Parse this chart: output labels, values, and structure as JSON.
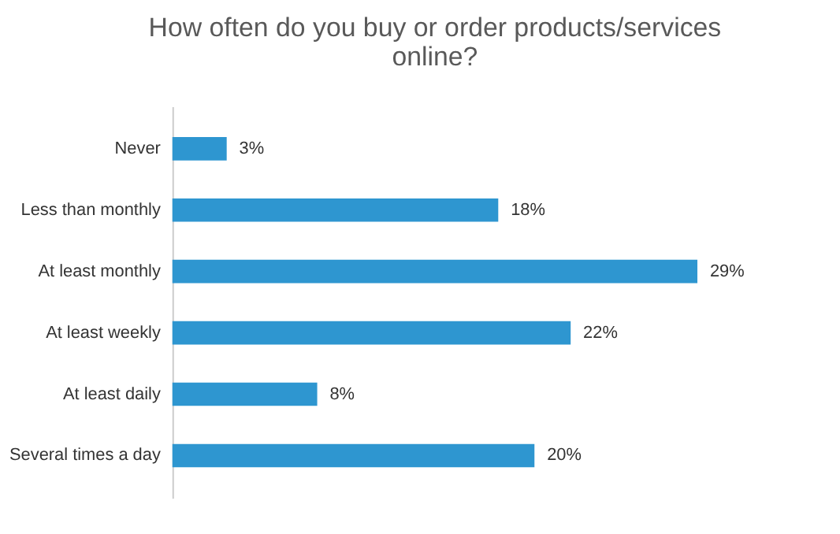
{
  "chart_data": {
    "type": "bar",
    "orientation": "horizontal",
    "title": "How often do you buy or order products/services online?",
    "categories": [
      "Never",
      "Less than monthly",
      "At least monthly",
      "At least weekly",
      "At least daily",
      "Several times a day"
    ],
    "values": [
      3,
      18,
      29,
      22,
      8,
      20
    ],
    "value_labels": [
      "3%",
      "18%",
      "29%",
      "22%",
      "8%",
      "20%"
    ],
    "color": "#2e96d0"
  }
}
